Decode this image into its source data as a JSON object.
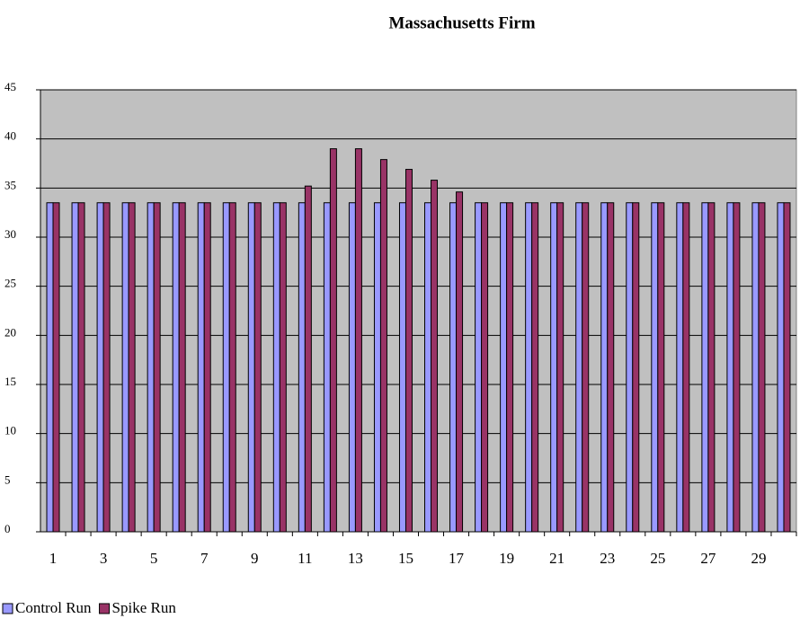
{
  "chart_data": {
    "type": "bar",
    "title": "Massachusetts Firm",
    "categories": [
      "1",
      null,
      "3",
      null,
      "5",
      null,
      "7",
      null,
      "9",
      null,
      "11",
      null,
      "13",
      null,
      "15",
      null,
      "17",
      null,
      "19",
      null,
      "21",
      null,
      "23",
      null,
      "25",
      null,
      "27",
      null,
      "29",
      null
    ],
    "series": [
      {
        "name": "Control Run",
        "color": "#9999ff",
        "values": [
          33.5,
          33.5,
          33.5,
          33.5,
          33.5,
          33.5,
          33.5,
          33.5,
          33.5,
          33.5,
          33.5,
          33.5,
          33.5,
          33.5,
          33.5,
          33.5,
          33.5,
          33.5,
          33.5,
          33.5,
          33.5,
          33.5,
          33.5,
          33.5,
          33.5,
          33.5,
          33.5,
          33.5,
          33.5,
          33.5
        ]
      },
      {
        "name": "Spike Run",
        "color": "#993366",
        "values": [
          33.5,
          33.5,
          33.5,
          33.5,
          33.5,
          33.5,
          33.5,
          33.5,
          33.5,
          33.5,
          35.2,
          39,
          39,
          37.9,
          36.9,
          35.8,
          34.6,
          33.5,
          33.5,
          33.5,
          33.5,
          33.5,
          33.5,
          33.5,
          33.5,
          33.5,
          33.5,
          33.5,
          33.5,
          33.5
        ]
      }
    ],
    "ylim": [
      0,
      45
    ],
    "yticks": [
      0,
      5,
      10,
      15,
      20,
      25,
      30,
      35,
      40,
      45
    ],
    "grid": true,
    "legend": "bottom-left"
  }
}
